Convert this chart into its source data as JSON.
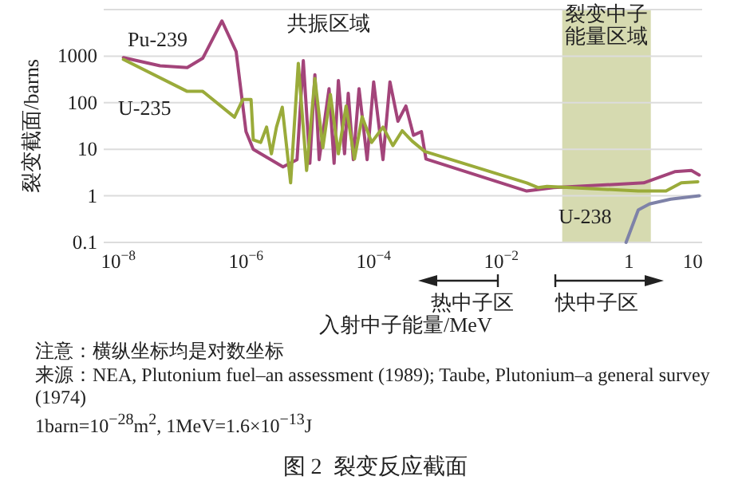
{
  "chart_data": {
    "type": "line",
    "title": "图 2  裂变反应截面",
    "xlabel": "入射中子能量/MeV",
    "ylabel": "裂变截面/barns",
    "log": "xy",
    "grid": "y",
    "line_style": "solid",
    "xlim": [
      5.9e-09,
      14
    ],
    "ylim": [
      0.1,
      10000
    ],
    "xticks": [
      {
        "value": 1e-08,
        "label": "10$^{−8}$"
      },
      {
        "value": 1e-06,
        "label": "10$^{−6}$"
      },
      {
        "value": 0.0001,
        "label": "10$^{−4}$"
      },
      {
        "value": 0.01,
        "label": "10$^{−2}$"
      },
      1,
      10
    ],
    "yticks": [
      0.1,
      1,
      10,
      100,
      1000,
      {
        "value": 10000,
        "label": null
      }
    ],
    "bands": [
      {
        "axis": "x",
        "from": 0.09,
        "to": 2.2,
        "label": "裂变中子能量区域",
        "color": "#d6dab0"
      }
    ],
    "annotations": [
      "共振区域",
      "热中子区",
      "快中子区",
      "注意：横纵坐标均是对数坐标",
      "来源：NEA, Plutonium fuel–an assessment (1989); Taube, Plutonium–a general survey (1974)",
      "1barn=10$^{−28}$m$^{2}$, 1MeV=1.6×10$^{−13}$J"
    ],
    "series": [
      {
        "name": "Pu-239",
        "color": "#a3447a",
        "x": [
          1.2e-08,
          4.5e-08,
          1.2e-07,
          2.1e-07,
          4.2e-07,
          7e-07,
          1e-06,
          1.3e-06,
          3.8e-06,
          6.3e-06,
          7.9e-06,
          1e-05,
          1.2e-05,
          1.4e-05,
          2e-05,
          2.4e-05,
          2.8e-05,
          3.5e-05,
          4e-05,
          4.8e-05,
          5.9e-05,
          7.9e-05,
          0.0001,
          0.00014,
          0.00018,
          0.00024,
          0.00032,
          0.00042,
          0.00056,
          0.00066,
          0.025,
          0.066,
          1.7,
          5.2,
          9.5,
          12.6
        ],
        "values": [
          930,
          620,
          570,
          900,
          5700,
          1260,
          24,
          10,
          4.2,
          6,
          800,
          5,
          400,
          6,
          200,
          5,
          300,
          8,
          160,
          6,
          200,
          6,
          280,
          6,
          280,
          40,
          85,
          20,
          24,
          6.2,
          1.27,
          1.5,
          1.9,
          3.3,
          3.5,
          2.8
        ]
      },
      {
        "name": "U-235",
        "color": "#9aab3a",
        "x": [
          1.2e-08,
          1.2e-07,
          2.1e-07,
          6.6e-07,
          8.9e-07,
          1.2e-06,
          1.3e-06,
          1.7e-06,
          2.1e-06,
          2.5e-06,
          3e-06,
          3.7e-06,
          5e-06,
          6.6e-06,
          8.9e-06,
          1.2e-05,
          1.6e-05,
          2.1e-05,
          2.8e-05,
          3.7e-05,
          5e-05,
          6.6e-05,
          9.3e-05,
          0.00014,
          0.0002,
          0.00028,
          0.0004,
          0.00063,
          0.025,
          0.038,
          0.052,
          1.4,
          3.8,
          6.6,
          12
        ],
        "values": [
          850,
          175,
          175,
          49,
          117,
          117,
          16,
          14,
          30,
          8,
          30,
          80,
          1.9,
          700,
          3.5,
          330,
          10.8,
          150,
          8,
          85,
          6.2,
          50,
          14,
          30,
          12,
          25,
          15,
          9,
          1.9,
          1.5,
          1.6,
          1.27,
          1.27,
          1.9,
          2
        ]
      },
      {
        "name": "U-238",
        "color": "#7e82a8",
        "x": [
          0.9,
          1.4,
          2.1,
          4.5,
          12.6
        ],
        "values": [
          0.1,
          0.5,
          0.67,
          0.85,
          1.0
        ]
      }
    ]
  }
}
